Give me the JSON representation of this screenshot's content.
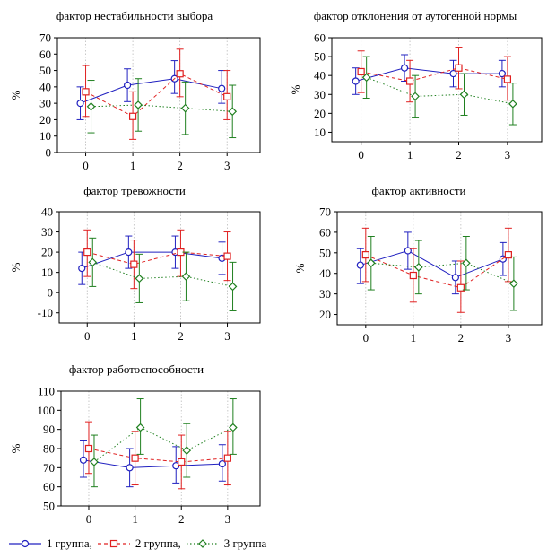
{
  "chart_data": [
    {
      "type": "line",
      "title": "фактор нестабильности выбора",
      "ylabel": "%",
      "xlabel": "",
      "categories": [
        "0",
        "1",
        "2",
        "3"
      ],
      "ylim": [
        0,
        70
      ],
      "yticks": [
        0,
        10,
        20,
        30,
        40,
        50,
        60,
        70
      ],
      "grid": true,
      "series": [
        {
          "name": "1 группа,",
          "values": [
            30,
            41,
            45,
            39
          ],
          "low": [
            20,
            31,
            36,
            30
          ],
          "high": [
            40,
            51,
            56,
            50
          ]
        },
        {
          "name": "2 группа,",
          "values": [
            37,
            22,
            48,
            34
          ],
          "low": [
            22,
            8,
            34,
            20
          ],
          "high": [
            53,
            37,
            63,
            50
          ]
        },
        {
          "name": "3 группа",
          "values": [
            28,
            29,
            27,
            25
          ],
          "low": [
            12,
            13,
            11,
            9
          ],
          "high": [
            44,
            45,
            43,
            41
          ]
        }
      ]
    },
    {
      "type": "line",
      "title": "фактор отклонения от аутогенной нормы",
      "ylabel": "%",
      "xlabel": "",
      "categories": [
        "0",
        "1",
        "2",
        "3"
      ],
      "ylim": [
        5,
        60
      ],
      "yticks": [
        10,
        20,
        30,
        40,
        50,
        60
      ],
      "grid": true,
      "series": [
        {
          "name": "1 группа,",
          "values": [
            37,
            44,
            41,
            41
          ],
          "low": [
            30,
            37,
            34,
            34
          ],
          "high": [
            44,
            51,
            48,
            48
          ]
        },
        {
          "name": "2 группа,",
          "values": [
            42,
            37,
            44,
            38
          ],
          "low": [
            31,
            26,
            33,
            27
          ],
          "high": [
            53,
            48,
            55,
            50
          ]
        },
        {
          "name": "3 группа",
          "values": [
            39,
            29,
            30,
            25
          ],
          "low": [
            28,
            18,
            19,
            14
          ],
          "high": [
            50,
            40,
            41,
            36
          ]
        }
      ]
    },
    {
      "type": "line",
      "title": "фактор тревожности",
      "ylabel": "%",
      "xlabel": "",
      "categories": [
        "0",
        "1",
        "2",
        "3"
      ],
      "ylim": [
        -15,
        40
      ],
      "yticks": [
        -10,
        0,
        10,
        20,
        30,
        40
      ],
      "grid": true,
      "series": [
        {
          "name": "1 группа,",
          "values": [
            12,
            20,
            20,
            17
          ],
          "low": [
            4,
            12,
            12,
            9
          ],
          "high": [
            20,
            28,
            28,
            25
          ]
        },
        {
          "name": "2 группа,",
          "values": [
            20,
            14,
            20,
            18
          ],
          "low": [
            8,
            2,
            8,
            6
          ],
          "high": [
            31,
            26,
            31,
            30
          ]
        },
        {
          "name": "3 группа",
          "values": [
            15,
            7,
            8,
            3
          ],
          "low": [
            3,
            -5,
            -4,
            -9
          ],
          "high": [
            27,
            19,
            20,
            15
          ]
        }
      ]
    },
    {
      "type": "line",
      "title": "фактор активности",
      "ylabel": "%",
      "xlabel": "",
      "categories": [
        "0",
        "1",
        "2",
        "3"
      ],
      "ylim": [
        15,
        70
      ],
      "yticks": [
        20,
        30,
        40,
        50,
        60,
        70
      ],
      "grid": true,
      "series": [
        {
          "name": "1 группа,",
          "values": [
            44,
            51,
            38,
            47
          ],
          "low": [
            35,
            42,
            30,
            39
          ],
          "high": [
            52,
            60,
            46,
            55
          ]
        },
        {
          "name": "2 группа,",
          "values": [
            49,
            39,
            33,
            49
          ],
          "low": [
            36,
            26,
            21,
            36
          ],
          "high": [
            62,
            52,
            46,
            62
          ]
        },
        {
          "name": "3 группа",
          "values": [
            45,
            43,
            45,
            35
          ],
          "low": [
            32,
            30,
            32,
            22
          ],
          "high": [
            58,
            56,
            58,
            48
          ]
        }
      ]
    },
    {
      "type": "line",
      "title": "фактор работоспособности",
      "ylabel": "%",
      "xlabel": "",
      "categories": [
        "0",
        "1",
        "2",
        "3"
      ],
      "ylim": [
        50,
        110
      ],
      "yticks": [
        50,
        60,
        70,
        80,
        90,
        100,
        110
      ],
      "grid": true,
      "series": [
        {
          "name": "1 группа,",
          "values": [
            74,
            70,
            71,
            72
          ],
          "low": [
            65,
            60,
            62,
            63
          ],
          "high": [
            84,
            80,
            81,
            82
          ]
        },
        {
          "name": "2 группа,",
          "values": [
            80,
            75,
            73,
            75
          ],
          "low": [
            67,
            61,
            59,
            61
          ],
          "high": [
            94,
            89,
            87,
            89
          ]
        },
        {
          "name": "3 группа",
          "values": [
            73,
            91,
            79,
            91
          ],
          "low": [
            60,
            77,
            65,
            77
          ],
          "high": [
            87,
            106,
            93,
            106
          ]
        }
      ]
    }
  ],
  "legend": {
    "placement": "bottom-left",
    "items": [
      {
        "label": "1 группа,",
        "color": "#2020c0",
        "marker": "circle",
        "line": "solid"
      },
      {
        "label": "2 группа,",
        "color": "#e02020",
        "marker": "square",
        "line": "dashed"
      },
      {
        "label": "3 группа",
        "color": "#208020",
        "marker": "diamond",
        "line": "dotted"
      }
    ]
  },
  "colors": {
    "series": [
      "#2020c0",
      "#e02020",
      "#208020"
    ],
    "grid": "#bbbbbb",
    "axis": "#000000"
  }
}
